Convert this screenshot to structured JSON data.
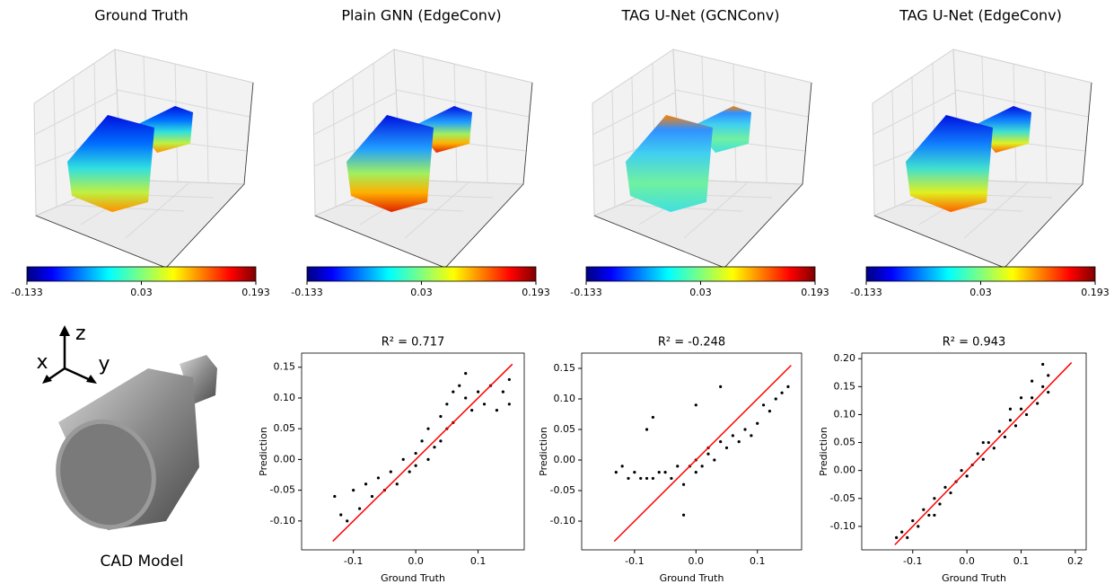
{
  "chart_data": [
    {
      "type": "voxel3d",
      "title": "Ground Truth",
      "colorbar": {
        "colormap": "jet",
        "clim": [
          -0.133,
          0.193
        ],
        "ticks": [
          -0.133,
          0.03,
          0.193
        ]
      }
    },
    {
      "type": "voxel3d",
      "title": "Plain GNN (EdgeConv)",
      "colorbar": {
        "colormap": "jet",
        "clim": [
          -0.133,
          0.193
        ],
        "ticks": [
          -0.133,
          0.03,
          0.193
        ]
      }
    },
    {
      "type": "voxel3d",
      "title": "TAG U-Net (GCNConv)",
      "colorbar": {
        "colormap": "jet",
        "clim": [
          -0.133,
          0.193
        ],
        "ticks": [
          -0.133,
          0.03,
          0.193
        ]
      }
    },
    {
      "type": "voxel3d",
      "title": "TAG U-Net (EdgeConv)",
      "colorbar": {
        "colormap": "jet",
        "clim": [
          -0.133,
          0.193
        ],
        "ticks": [
          -0.133,
          0.03,
          0.193
        ]
      }
    },
    {
      "type": "scatter",
      "title": "R² = 0.717",
      "x_label": "Ground Truth",
      "y_label": "Prediction",
      "color": "#000000",
      "x": [
        -0.13,
        -0.12,
        -0.11,
        -0.1,
        -0.09,
        -0.08,
        -0.07,
        -0.06,
        -0.05,
        -0.04,
        -0.03,
        -0.02,
        -0.01,
        0.0,
        0.0,
        0.01,
        0.02,
        0.02,
        0.03,
        0.04,
        0.04,
        0.05,
        0.05,
        0.06,
        0.06,
        0.07,
        0.08,
        0.08,
        0.09,
        0.1,
        0.11,
        0.12,
        0.13,
        0.14,
        0.15,
        0.15
      ],
      "y": [
        -0.06,
        -0.09,
        -0.1,
        -0.05,
        -0.08,
        -0.04,
        -0.06,
        -0.03,
        -0.05,
        -0.02,
        -0.04,
        0.0,
        -0.02,
        0.01,
        -0.01,
        0.03,
        0.0,
        0.05,
        0.02,
        0.07,
        0.03,
        0.09,
        0.05,
        0.11,
        0.06,
        0.12,
        0.1,
        0.14,
        0.08,
        0.11,
        0.09,
        0.12,
        0.08,
        0.11,
        0.13,
        0.09
      ],
      "line": {
        "color": "#ff0000",
        "x": [
          -0.133,
          0.155
        ],
        "y": [
          -0.133,
          0.155
        ]
      },
      "xlim": [
        -0.183,
        0.174
      ],
      "ylim": [
        -0.147,
        0.173
      ],
      "xticks": [
        -0.1,
        {
          "value": 0,
          "label": "0.0"
        },
        0.1
      ],
      "yticks": [
        {
          "value": -0.1,
          "label": "-0.10"
        },
        -0.05,
        {
          "value": 0,
          "label": "0.00"
        },
        0.05,
        {
          "value": 0.1,
          "label": "0.10"
        },
        0.15
      ]
    },
    {
      "type": "scatter",
      "title": "R² = -0.248",
      "x_label": "Ground Truth",
      "y_label": "Prediction",
      "color": "#000000",
      "x": [
        -0.13,
        -0.12,
        -0.11,
        -0.1,
        -0.09,
        -0.08,
        -0.07,
        -0.06,
        -0.05,
        -0.04,
        -0.03,
        -0.02,
        -0.01,
        0.0,
        0.0,
        0.01,
        0.02,
        0.02,
        0.03,
        0.04,
        0.05,
        0.06,
        0.07,
        0.08,
        0.09,
        0.1,
        0.11,
        0.12,
        0.13,
        0.14,
        0.15,
        -0.08,
        -0.07,
        -0.02,
        0.04,
        0.0
      ],
      "y": [
        -0.02,
        -0.01,
        -0.03,
        -0.02,
        -0.03,
        -0.03,
        -0.03,
        -0.02,
        -0.02,
        -0.03,
        -0.01,
        -0.04,
        -0.01,
        -0.02,
        0.0,
        -0.01,
        0.01,
        0.02,
        0.0,
        0.03,
        0.02,
        0.04,
        0.03,
        0.05,
        0.04,
        0.06,
        0.09,
        0.08,
        0.1,
        0.11,
        0.12,
        0.05,
        0.07,
        -0.09,
        0.12,
        0.09
      ],
      "line": {
        "color": "#ff0000",
        "x": [
          -0.133,
          0.155
        ],
        "y": [
          -0.133,
          0.155
        ]
      },
      "xlim": [
        -0.186,
        0.172
      ],
      "ylim": [
        -0.147,
        0.175
      ],
      "xticks": [
        -0.1,
        {
          "value": 0,
          "label": "0.0"
        },
        0.1
      ],
      "yticks": [
        {
          "value": -0.1,
          "label": "-0.10"
        },
        -0.05,
        {
          "value": 0,
          "label": "0.00"
        },
        0.05,
        {
          "value": 0.1,
          "label": "0.10"
        },
        0.15
      ]
    },
    {
      "type": "scatter",
      "title": "R² = 0.943",
      "x_label": "Ground Truth",
      "y_label": "Prediction",
      "color": "#000000",
      "x": [
        -0.12,
        -0.11,
        -0.1,
        -0.09,
        -0.08,
        -0.07,
        -0.06,
        -0.05,
        -0.04,
        -0.03,
        -0.02,
        -0.01,
        0.0,
        0.01,
        0.02,
        0.03,
        0.04,
        0.05,
        0.06,
        0.07,
        0.08,
        0.09,
        0.1,
        0.11,
        0.12,
        0.13,
        0.14,
        0.15,
        0.15,
        -0.13,
        0.12,
        0.08,
        0.14,
        0.03,
        -0.06,
        0.1
      ],
      "y": [
        -0.11,
        -0.12,
        -0.09,
        -0.1,
        -0.07,
        -0.08,
        -0.05,
        -0.06,
        -0.03,
        -0.04,
        -0.02,
        0.0,
        -0.01,
        0.01,
        0.03,
        0.02,
        0.05,
        0.04,
        0.07,
        0.06,
        0.09,
        0.08,
        0.11,
        0.1,
        0.13,
        0.12,
        0.15,
        0.17,
        0.14,
        -0.12,
        0.16,
        0.11,
        0.19,
        0.05,
        -0.08,
        0.13
      ],
      "line": {
        "color": "#ff0000",
        "x": [
          -0.133,
          0.193
        ],
        "y": [
          -0.133,
          0.193
        ]
      },
      "xlim": [
        -0.194,
        0.22
      ],
      "ylim": [
        -0.142,
        0.21
      ],
      "xticks": [
        -0.1,
        {
          "value": 0,
          "label": "0.0"
        },
        0.1,
        0.2
      ],
      "yticks": [
        {
          "value": -0.1,
          "label": "-0.10"
        },
        -0.05,
        {
          "value": 0,
          "label": "0.00"
        },
        0.05,
        {
          "value": 0.1,
          "label": "0.10"
        },
        0.15,
        {
          "value": 0.2,
          "label": "0.20"
        }
      ]
    }
  ],
  "cad_model": {
    "label": "CAD Model",
    "axes": [
      "x",
      "y",
      "z"
    ]
  }
}
